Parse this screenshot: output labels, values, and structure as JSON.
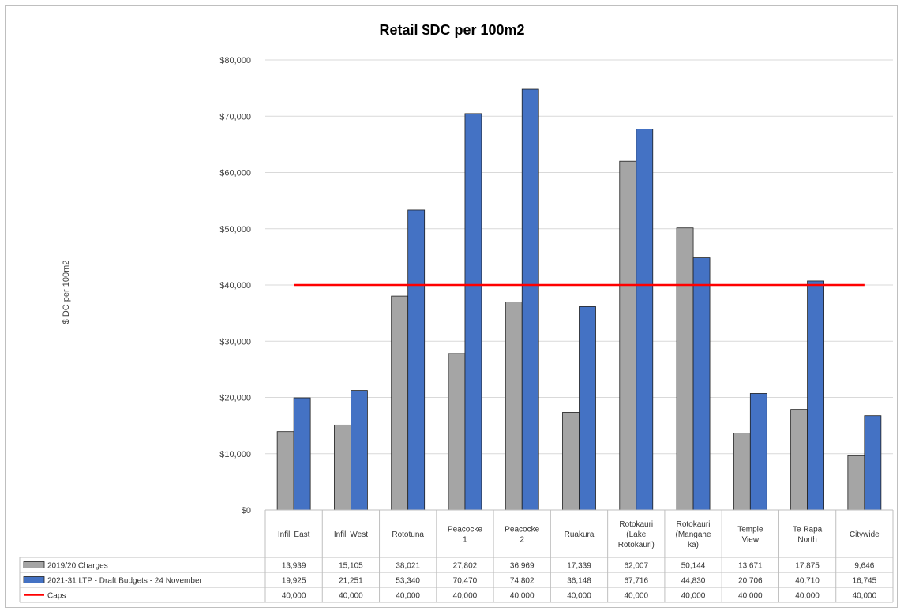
{
  "chart_data": {
    "type": "bar",
    "title": "Retail $DC per 100m2",
    "ylabel": "$ DC per 100m2",
    "ylim": [
      0,
      80000
    ],
    "yticks": [
      "$0",
      "$10,000",
      "$20,000",
      "$30,000",
      "$40,000",
      "$50,000",
      "$60,000",
      "$70,000",
      "$80,000"
    ],
    "categories": [
      [
        "Infill East"
      ],
      [
        "Infill West"
      ],
      [
        "Rototuna"
      ],
      [
        "Peacocke",
        "1"
      ],
      [
        "Peacocke",
        "2"
      ],
      [
        "Ruakura"
      ],
      [
        "Rotokauri",
        "(Lake",
        "Rotokauri)"
      ],
      [
        "Rotokauri",
        "(Mangahe",
        "ka)"
      ],
      [
        "Temple",
        "View"
      ],
      [
        "Te Rapa",
        "North"
      ],
      [
        "Citywide"
      ]
    ],
    "series": [
      {
        "name": "2019/20 Charges",
        "color": "#a5a5a5",
        "values": [
          13939,
          15105,
          38021,
          27802,
          36969,
          17339,
          62007,
          50144,
          13671,
          17875,
          9646
        ],
        "labels": [
          "13,939",
          "15,105",
          "38,021",
          "27,802",
          "36,969",
          "17,339",
          "62,007",
          "50,144",
          "13,671",
          "17,875",
          "9,646"
        ]
      },
      {
        "name": "2021-31 LTP - Draft Budgets - 24 November",
        "color": "#4472c4",
        "values": [
          19925,
          21251,
          53340,
          70470,
          74802,
          36148,
          67716,
          44830,
          20706,
          40710,
          16745
        ],
        "labels": [
          "19,925",
          "21,251",
          "53,340",
          "70,470",
          "74,802",
          "36,148",
          "67,716",
          "44,830",
          "20,706",
          "40,710",
          "16,745"
        ]
      },
      {
        "name": "Caps",
        "color": "#ff0000",
        "type": "line",
        "values": [
          40000,
          40000,
          40000,
          40000,
          40000,
          40000,
          40000,
          40000,
          40000,
          40000,
          40000
        ],
        "labels": [
          "40,000",
          "40,000",
          "40,000",
          "40,000",
          "40,000",
          "40,000",
          "40,000",
          "40,000",
          "40,000",
          "40,000",
          "40,000"
        ]
      }
    ],
    "grid": true,
    "legend": "data-table"
  }
}
